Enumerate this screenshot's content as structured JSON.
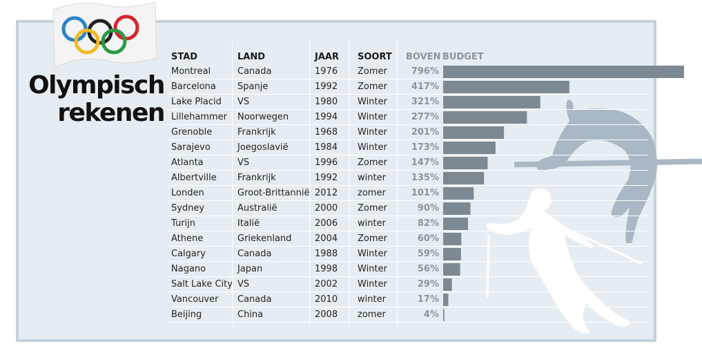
{
  "title": {
    "line1": "Olympisch",
    "line2": "rekenen"
  },
  "colors": {
    "bar": "#7d8992",
    "panel": "#e6edf2",
    "border": "#c4d1da",
    "pct": "#8a959c"
  },
  "icons": {
    "flag": "olympic-flag-icon",
    "jumper": "high-jumper-icon",
    "skier": "skier-icon"
  },
  "chart_data": {
    "type": "table",
    "title": "Olympisch rekenen",
    "columns": [
      "STAD",
      "LAND",
      "JAAR",
      "SOORT",
      "BOVEN",
      "BUDGET"
    ],
    "value_unit": "%",
    "rows": [
      {
        "stad": "Montreal",
        "land": "Canada",
        "jaar": "1976",
        "soort": "Zomer",
        "pct": "796%",
        "value": 796
      },
      {
        "stad": "Barcelona",
        "land": "Spanje",
        "jaar": "1992",
        "soort": "Zomer",
        "pct": "417%",
        "value": 417
      },
      {
        "stad": "Lake Placid",
        "land": "VS",
        "jaar": "1980",
        "soort": "Winter",
        "pct": "321%",
        "value": 321
      },
      {
        "stad": "Lillehammer",
        "land": "Noorwegen",
        "jaar": "1994",
        "soort": "Winter",
        "pct": "277%",
        "value": 277
      },
      {
        "stad": "Grenoble",
        "land": "Frankrijk",
        "jaar": "1968",
        "soort": "Winter",
        "pct": "201%",
        "value": 201
      },
      {
        "stad": "Sarajevo",
        "land": "Joegoslavië",
        "jaar": "1984",
        "soort": "Winter",
        "pct": "173%",
        "value": 173
      },
      {
        "stad": "Atlanta",
        "land": "VS",
        "jaar": "1996",
        "soort": "Zomer",
        "pct": "147%",
        "value": 147
      },
      {
        "stad": "Albertville",
        "land": "Frankrijk",
        "jaar": "1992",
        "soort": "winter",
        "pct": "135%",
        "value": 135
      },
      {
        "stad": "Londen",
        "land": "Groot-Brittannië",
        "jaar": "2012",
        "soort": "zomer",
        "pct": "101%",
        "value": 101
      },
      {
        "stad": "Sydney",
        "land": "Australië",
        "jaar": "2000",
        "soort": "Zomer",
        "pct": "90%",
        "value": 90
      },
      {
        "stad": "Turijn",
        "land": "Italië",
        "jaar": "2006",
        "soort": "winter",
        "pct": "82%",
        "value": 82
      },
      {
        "stad": "Athene",
        "land": "Griekenland",
        "jaar": "2004",
        "soort": "Zomer",
        "pct": "60%",
        "value": 60
      },
      {
        "stad": "Calgary",
        "land": "Canada",
        "jaar": "1988",
        "soort": "Winter",
        "pct": "59%",
        "value": 59
      },
      {
        "stad": "Nagano",
        "land": "Japan",
        "jaar": "1998",
        "soort": "Winter",
        "pct": "56%",
        "value": 56
      },
      {
        "stad": "Salt Lake City",
        "land": "VS",
        "jaar": "2002",
        "soort": "Winter",
        "pct": "29%",
        "value": 29
      },
      {
        "stad": "Vancouver",
        "land": "Canada",
        "jaar": "2010",
        "soort": "winter",
        "pct": "17%",
        "value": 17
      },
      {
        "stad": "Beijing",
        "land": "China",
        "jaar": "2008",
        "soort": "zomer",
        "pct": "4%",
        "value": 4
      }
    ]
  }
}
